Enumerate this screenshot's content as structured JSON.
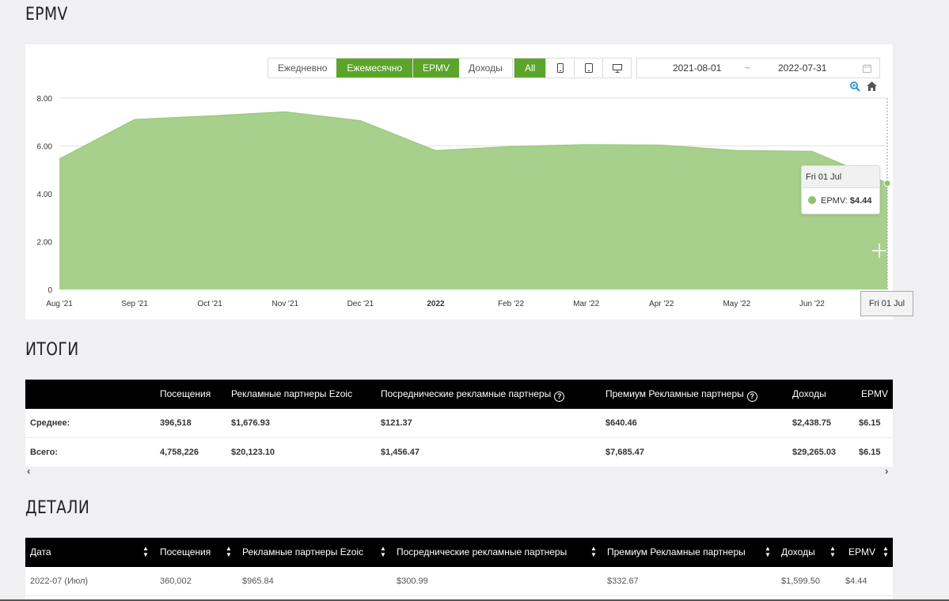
{
  "page": {
    "chart_title": "EPMV",
    "totals_title": "ИТОГИ",
    "details_title": "ДЕТАЛИ"
  },
  "controls": {
    "period": [
      "Ежедневно",
      "Ежемесячно"
    ],
    "period_active": "Ежемесячно",
    "metric": [
      "EPMV",
      "Доходы"
    ],
    "metric_active": "EPMV",
    "device": [
      "All"
    ],
    "device_icons": [
      "phone-icon",
      "tablet-icon",
      "desktop-icon"
    ],
    "date_from": "2021-08-01",
    "date_sep": "~",
    "date_to": "2022-07-31"
  },
  "accent_color": "#5aa52a",
  "area_color": "#a8d08d",
  "chart_data": {
    "type": "area",
    "x": [
      "Aug '21",
      "Sep '21",
      "Oct '21",
      "Nov '21",
      "Dec '21",
      "2022",
      "Feb '22",
      "Mar '22",
      "Apr '22",
      "May '22",
      "Jun '22",
      "Fri 01 Jul"
    ],
    "values": [
      5.45,
      7.1,
      7.25,
      7.42,
      7.05,
      5.8,
      5.97,
      6.05,
      6.03,
      5.8,
      5.77,
      4.44
    ],
    "yticks": [
      "0",
      "2.00",
      "4.00",
      "6.00",
      "8.00"
    ],
    "ylim": [
      0,
      8
    ],
    "grid": true,
    "tooltip": {
      "date": "Fri 01 Jul",
      "label": "EPMV:",
      "value": "$4.44"
    },
    "crosshair_label": "Fri 01 Jul"
  },
  "totals": {
    "headers": [
      "Посещения",
      "Рекламные партнеры Ezoic",
      "Посреднические рекламные партнеры",
      "Премиум Рекламные партнеры",
      "Доходы",
      "EPMV"
    ],
    "rows": [
      {
        "label": "Среднее:",
        "cells": [
          "396,518",
          "$1,676.93",
          "$121.37",
          "$640.46",
          "$2,438.75",
          "$6.15"
        ]
      },
      {
        "label": "Всего:",
        "cells": [
          "4,758,226",
          "$20,123.10",
          "$1,456.47",
          "$7,685.47",
          "$29,265.03",
          "$6.15"
        ]
      }
    ],
    "scroll_left": "‹",
    "scroll_right": "›"
  },
  "details": {
    "headers": [
      "Дата",
      "Посещения",
      "Рекламные партнеры Ezoic",
      "Посреднические рекламные партнеры",
      "Премиум Рекламные партнеры",
      "Доходы",
      "EPMV"
    ],
    "rows": [
      [
        "2022-07 (Июл)",
        "360,002",
        "$965.84",
        "$300.99",
        "$332.67",
        "$1,599.50",
        "$4.44"
      ]
    ]
  }
}
